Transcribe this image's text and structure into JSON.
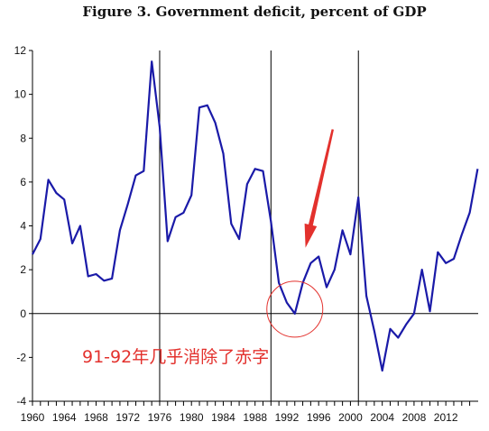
{
  "chart_data": {
    "type": "line",
    "title": "Figure 3. Government deficit, percent of GDP",
    "xlabel": "",
    "ylabel": "",
    "xlim": [
      1960,
      2015
    ],
    "ylim": [
      -4,
      12
    ],
    "y_ticks": [
      12,
      10,
      8,
      6,
      4,
      2,
      0,
      -2,
      -4
    ],
    "x_tick_labels": [
      "1960",
      "1964",
      "1968",
      "1972",
      "1976",
      "1980",
      "1984",
      "1988",
      "1992",
      "1996",
      "2000",
      "2004",
      "2008",
      "2012"
    ],
    "x_tick_years": [
      1960,
      1964,
      1968,
      1972,
      1976,
      1980,
      1984,
      1988,
      1992,
      1996,
      2000,
      2004,
      2008,
      2012
    ],
    "vertical_lines": [
      1976,
      1990,
      2001
    ],
    "zero_line": 0,
    "grid": false,
    "line_color": "#1a1aa8",
    "series": [
      {
        "name": "",
        "points": [
          [
            1960,
            2.7
          ],
          [
            1961,
            3.4
          ],
          [
            1962,
            6.1
          ],
          [
            1963,
            5.5
          ],
          [
            1964,
            5.2
          ],
          [
            1965,
            3.2
          ],
          [
            1966,
            4.0
          ],
          [
            1967,
            1.7
          ],
          [
            1968,
            1.8
          ],
          [
            1969,
            1.5
          ],
          [
            1970,
            1.6
          ],
          [
            1971,
            3.8
          ],
          [
            1972,
            5.0
          ],
          [
            1973,
            6.3
          ],
          [
            1974,
            6.5
          ],
          [
            1975,
            11.5
          ],
          [
            1976,
            8.5
          ],
          [
            1977,
            3.3
          ],
          [
            1978,
            4.4
          ],
          [
            1979,
            4.6
          ],
          [
            1980,
            5.4
          ],
          [
            1981,
            9.4
          ],
          [
            1982,
            9.5
          ],
          [
            1983,
            8.7
          ],
          [
            1984,
            7.3
          ],
          [
            1985,
            4.1
          ],
          [
            1986,
            3.4
          ],
          [
            1987,
            5.9
          ],
          [
            1988,
            6.6
          ],
          [
            1989,
            6.5
          ],
          [
            1990,
            4.2
          ],
          [
            1991,
            1.4
          ],
          [
            1992,
            0.5
          ],
          [
            1993,
            0.0
          ],
          [
            1994,
            1.4
          ],
          [
            1995,
            2.3
          ],
          [
            1996,
            2.6
          ],
          [
            1997,
            1.2
          ],
          [
            1998,
            2.0
          ],
          [
            1999,
            3.8
          ],
          [
            2000,
            2.7
          ],
          [
            2001,
            5.3
          ],
          [
            2002,
            0.8
          ],
          [
            2003,
            -0.8
          ],
          [
            2004,
            -2.6
          ],
          [
            2005,
            -0.7
          ],
          [
            2006,
            -1.1
          ],
          [
            2007,
            -0.5
          ],
          [
            2008,
            0.0
          ],
          [
            2009,
            2.0
          ],
          [
            2010,
            0.1
          ],
          [
            2011,
            2.8
          ],
          [
            2012,
            2.3
          ],
          [
            2013,
            2.5
          ],
          [
            2014,
            3.6
          ],
          [
            2015,
            4.6
          ],
          [
            2016,
            6.6
          ]
        ]
      }
    ],
    "annotations": [
      {
        "text": "91-92年几乎消除了赤字",
        "color": "#e3312d"
      }
    ],
    "highlight_circle": {
      "center": [
        1993,
        0.2
      ],
      "color": "#e3312d"
    },
    "arrow": {
      "from": [
        1998,
        8.4
      ],
      "to": [
        1994,
        3.0
      ],
      "color": "#e3312d"
    }
  }
}
